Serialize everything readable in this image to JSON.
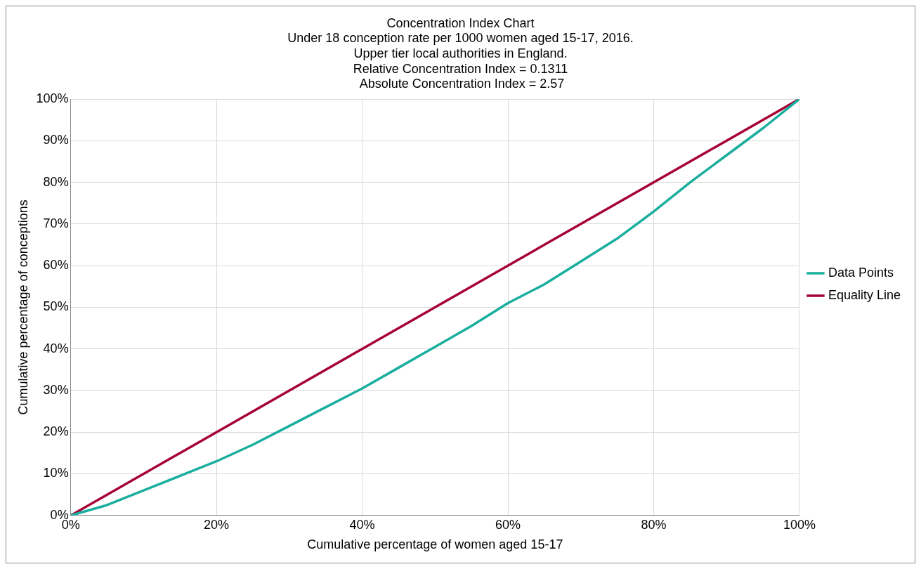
{
  "chart_data": {
    "type": "line",
    "title": "Concentration Index Chart",
    "subtitle": "Under 18 conception rate per 1000 women aged 15-17, 2016.\nUpper tier local authorities in England.\nRelative Concentration Index = 0.1311\n Absolute Concentration Index = 2.57",
    "xlabel": "Cumulative percentage of women aged 15-17",
    "ylabel": "Cumulative percentage of conceptions",
    "x": [
      0,
      5,
      10,
      15,
      20,
      25,
      30,
      35,
      40,
      45,
      50,
      55,
      60,
      65,
      70,
      75,
      80,
      85,
      90,
      95,
      100
    ],
    "series": [
      {
        "name": "Data Points",
        "color": "#1aae9f",
        "values": [
          0,
          2.5,
          6,
          9.5,
          13,
          17,
          21.5,
          26,
          30.5,
          35.5,
          40.5,
          45.5,
          51,
          55.5,
          61,
          66.5,
          73,
          80,
          86.5,
          93,
          100
        ]
      },
      {
        "name": "Equality Line",
        "color": "#a50034",
        "x": [
          0,
          100
        ],
        "values": [
          0,
          100
        ]
      }
    ],
    "xlim": [
      0,
      100
    ],
    "ylim": [
      0,
      100
    ],
    "xticks": [
      {
        "value": 0,
        "label": "0%"
      },
      {
        "value": 20,
        "label": "20%"
      },
      {
        "value": 40,
        "label": "40%"
      },
      {
        "value": 60,
        "label": "60%"
      },
      {
        "value": 80,
        "label": "80%"
      },
      {
        "value": 100,
        "label": "100%"
      }
    ],
    "yticks": [
      {
        "value": 0,
        "label": "0%"
      },
      {
        "value": 10,
        "label": "10%"
      },
      {
        "value": 20,
        "label": "20%"
      },
      {
        "value": 30,
        "label": "30%"
      },
      {
        "value": 40,
        "label": "40%"
      },
      {
        "value": 50,
        "label": "50%"
      },
      {
        "value": 60,
        "label": "60%"
      },
      {
        "value": 70,
        "label": "70%"
      },
      {
        "value": 80,
        "label": "80%"
      },
      {
        "value": 90,
        "label": "90%"
      },
      {
        "value": 100,
        "label": "100%"
      }
    ],
    "grid": true,
    "legend": "right",
    "marker": "none",
    "line_style": "solid"
  }
}
